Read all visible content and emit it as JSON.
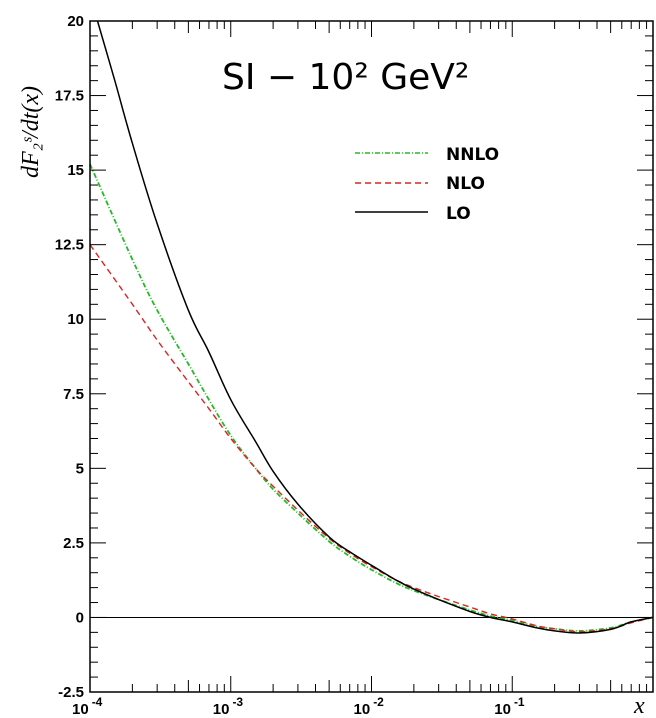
{
  "chart_data": {
    "type": "line",
    "title": "SI − 10² GeV²",
    "xlabel": "x",
    "ylabel": "dF₂ˢ/dt(x)",
    "x_scale": "log",
    "xlim": [
      0.0001,
      1
    ],
    "ylim": [
      -2.5,
      20
    ],
    "x_ticks": [
      {
        "value": 0.0001,
        "base": "10",
        "exp": "-4"
      },
      {
        "value": 0.001,
        "base": "10",
        "exp": "-3"
      },
      {
        "value": 0.01,
        "base": "10",
        "exp": "-2"
      },
      {
        "value": 0.1,
        "base": "10",
        "exp": "-1"
      }
    ],
    "y_ticks": [
      "-2.5",
      "0",
      "2.5",
      "5",
      "7.5",
      "10",
      "12.5",
      "15",
      "17.5",
      "20"
    ],
    "legend_position": "upper-center",
    "series": [
      {
        "name": "NNLO",
        "color": "#22bb22",
        "style": "dash-dot",
        "x": [
          0.0001,
          0.0002,
          0.0003,
          0.0005,
          0.0007,
          0.001,
          0.0015,
          0.002,
          0.003,
          0.005,
          0.007,
          0.01,
          0.015,
          0.02,
          0.03,
          0.05,
          0.07,
          0.1,
          0.15,
          0.2,
          0.3,
          0.5,
          0.7,
          1.0
        ],
        "y": [
          15.2,
          12.0,
          10.3,
          8.5,
          7.3,
          6.1,
          5.0,
          4.3,
          3.5,
          2.55,
          2.05,
          1.6,
          1.15,
          0.9,
          0.6,
          0.25,
          0.05,
          -0.1,
          -0.3,
          -0.38,
          -0.45,
          -0.35,
          -0.15,
          0.0
        ]
      },
      {
        "name": "NLO",
        "color": "#dd2222",
        "style": "dashed",
        "x": [
          0.0001,
          0.0002,
          0.0003,
          0.0005,
          0.0007,
          0.001,
          0.0015,
          0.002,
          0.003,
          0.005,
          0.007,
          0.01,
          0.015,
          0.02,
          0.03,
          0.05,
          0.07,
          0.1,
          0.15,
          0.2,
          0.3,
          0.5,
          0.7,
          1.0
        ],
        "y": [
          12.5,
          10.5,
          9.3,
          7.9,
          7.0,
          6.0,
          5.0,
          4.4,
          3.6,
          2.65,
          2.15,
          1.7,
          1.25,
          1.0,
          0.7,
          0.35,
          0.12,
          -0.05,
          -0.28,
          -0.38,
          -0.48,
          -0.38,
          -0.18,
          0.0
        ]
      },
      {
        "name": "LO",
        "color": "#000000",
        "style": "solid",
        "x": [
          0.000113,
          0.00015,
          0.0002,
          0.0003,
          0.0005,
          0.0007,
          0.001,
          0.0015,
          0.002,
          0.003,
          0.005,
          0.007,
          0.01,
          0.015,
          0.02,
          0.03,
          0.05,
          0.07,
          0.1,
          0.15,
          0.2,
          0.3,
          0.5,
          0.7,
          1.0
        ],
        "y": [
          20.0,
          18.0,
          15.9,
          13.2,
          10.3,
          8.9,
          7.3,
          5.9,
          4.9,
          3.8,
          2.7,
          2.2,
          1.75,
          1.25,
          0.95,
          0.6,
          0.2,
          0.0,
          -0.15,
          -0.35,
          -0.45,
          -0.52,
          -0.4,
          -0.15,
          0.0
        ]
      }
    ]
  }
}
